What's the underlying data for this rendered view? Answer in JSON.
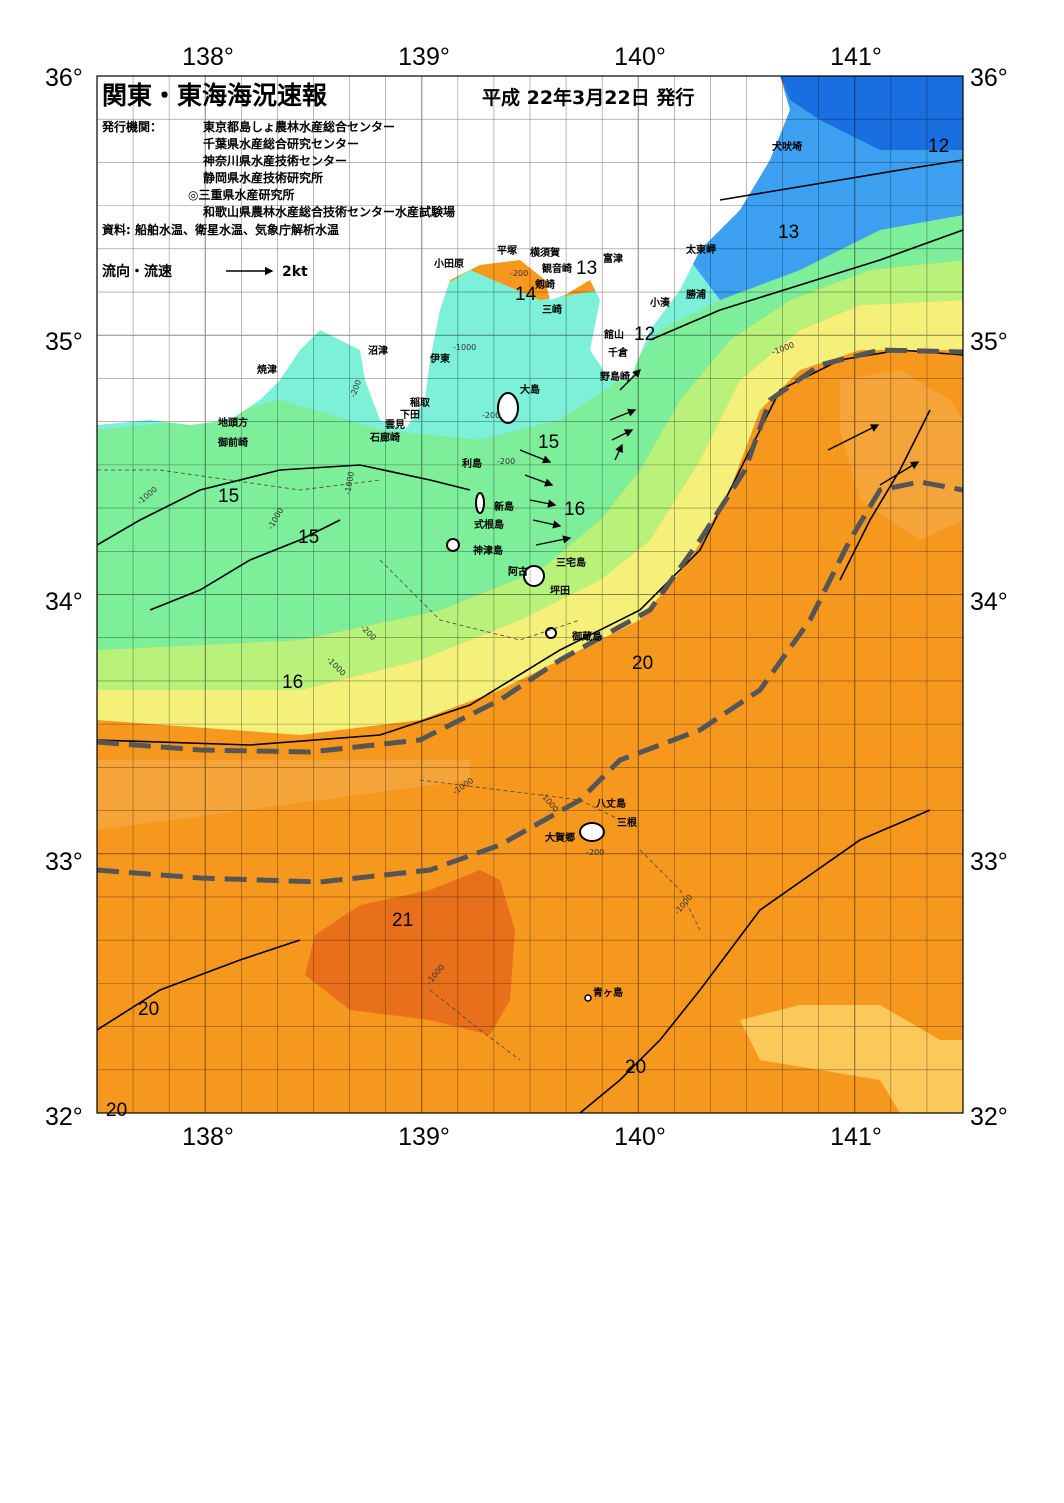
{
  "header": {
    "title": "関東・東海海況速報",
    "date": "平成 22年3月22日 発行",
    "publisher_label": "発行機関：",
    "publishers": [
      "東京都島しょ農林水産総合センター",
      "千葉県水産総合研究センター",
      "神奈川県水産技術センター",
      "静岡県水産技術研究所",
      "◎三重県水産研究所",
      "和歌山県農林水産総合技術センター水産試験場"
    ],
    "source": "資料: 船舶水温、衛星水温、気象庁解析水温",
    "legend_label": "流向・流速",
    "legend_speed": "2kt"
  },
  "axes": {
    "lon_labels": [
      "138°",
      "139°",
      "140°",
      "141°"
    ],
    "lat_labels": [
      "36°",
      "35°",
      "34°",
      "33°",
      "32°"
    ]
  },
  "isotherm_labels": [
    "12",
    "12",
    "13",
    "13",
    "14",
    "15",
    "15",
    "15",
    "16",
    "16",
    "20",
    "20",
    "20",
    "20",
    "21"
  ],
  "depth_labels": [
    "-200",
    "-200",
    "-200",
    "-200",
    "-200",
    "-200",
    "-1000",
    "-1000",
    "-1000",
    "-1000",
    "-1000",
    "-1000",
    "-1000",
    "-1000",
    "-1000",
    "-1000"
  ],
  "places": [
    "犬吠埼",
    "太東岬",
    "勝浦",
    "小湊",
    "館山",
    "千倉",
    "野島崎",
    "富津",
    "観音崎",
    "横須賀",
    "剱崎",
    "三崎",
    "平塚",
    "小田原",
    "大島",
    "利島",
    "新島",
    "式根島",
    "神津島",
    "三宅島",
    "阿古",
    "坪田",
    "御蔵島",
    "八丈島",
    "三根",
    "大賀郷",
    "青ヶ島",
    "沼津",
    "伊東",
    "焼津",
    "稲取",
    "下田",
    "雲見",
    "石廊崎",
    "地頭方",
    "御前崎"
  ],
  "colors": {
    "blue_dark": "#1a6fe0",
    "blue": "#3d9ff0",
    "cyan": "#7df0d8",
    "green": "#7dee9a",
    "lightgreen": "#b9f27a",
    "yellow": "#f5f07a",
    "orange": "#f7981e",
    "darkorange": "#e8701a",
    "lightorange": "#fbc85a",
    "kuroshio_axis": "#555555"
  }
}
